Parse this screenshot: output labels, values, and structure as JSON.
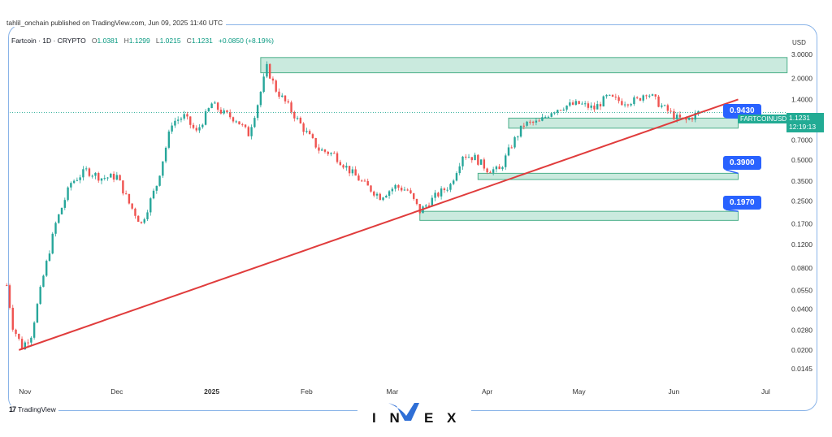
{
  "header": {
    "publish_line": "tahlil_onchain published on TradingView.com, Jun 09, 2025 11:40 UTC",
    "symbol": "Fartcoin · 1D · CRYPTO",
    "o_label": "O",
    "o_value": "1.0381",
    "h_label": "H",
    "h_value": "1.1299",
    "l_label": "L",
    "l_value": "1.0215",
    "c_label": "C",
    "c_value": "1.1231",
    "change": "+0.0850 (+8.19%)"
  },
  "axis": {
    "currency": "USD",
    "y_ticks": [
      "3.0000",
      "2.0000",
      "1.4000",
      "1.0000",
      "0.7000",
      "0.5000",
      "0.3500",
      "0.2500",
      "0.1700",
      "0.1200",
      "0.0800",
      "0.0550",
      "0.0400",
      "0.0280",
      "0.0200",
      "0.0145"
    ],
    "x_ticks": [
      "Nov",
      "Dec",
      "2025",
      "Feb",
      "Mar",
      "Apr",
      "May",
      "Jun",
      "Jul"
    ]
  },
  "price_label": {
    "ticker": "FARTCOINUSD",
    "price": "1.1231",
    "countdown": "12:19:13"
  },
  "callouts": [
    "0.9430",
    "0.3900",
    "0.1970"
  ],
  "footer": {
    "tradingview": "TradingView",
    "brand": "INVEX"
  },
  "colors": {
    "up": "#26a69a",
    "down": "#ef5350",
    "zone": "#9fd8c2",
    "trendline": "#e03c3c",
    "callout": "#2962ff"
  },
  "chart_data": {
    "type": "candlestick",
    "scale": "log",
    "ylim": [
      0.0125,
      3.4
    ],
    "x_range": [
      "2024-10-27",
      "2025-07-07"
    ],
    "price_path": [
      [
        "2024-10-26",
        0.06
      ],
      [
        "2024-10-28",
        0.03
      ],
      [
        "2024-10-31",
        0.021
      ],
      [
        "2024-11-03",
        0.026
      ],
      [
        "2024-11-07",
        0.07
      ],
      [
        "2024-11-11",
        0.17
      ],
      [
        "2024-11-16",
        0.34
      ],
      [
        "2024-11-21",
        0.42
      ],
      [
        "2024-11-26",
        0.37
      ],
      [
        "2024-12-01",
        0.38
      ],
      [
        "2024-12-05",
        0.24
      ],
      [
        "2024-12-09",
        0.17
      ],
      [
        "2024-12-14",
        0.33
      ],
      [
        "2024-12-19",
        0.95
      ],
      [
        "2024-12-23",
        1.05
      ],
      [
        "2024-12-27",
        0.8
      ],
      [
        "2025-01-01",
        1.3
      ],
      [
        "2025-01-05",
        1.1
      ],
      [
        "2025-01-09",
        1.0
      ],
      [
        "2025-01-13",
        0.78
      ],
      [
        "2025-01-16",
        1.3
      ],
      [
        "2025-01-19",
        2.4
      ],
      [
        "2025-01-22",
        1.65
      ],
      [
        "2025-01-26",
        1.25
      ],
      [
        "2025-01-31",
        0.85
      ],
      [
        "2025-02-05",
        0.6
      ],
      [
        "2025-02-10",
        0.55
      ],
      [
        "2025-02-15",
        0.42
      ],
      [
        "2025-02-20",
        0.33
      ],
      [
        "2025-02-25",
        0.27
      ],
      [
        "2025-03-02",
        0.32
      ],
      [
        "2025-03-06",
        0.3
      ],
      [
        "2025-03-10",
        0.21
      ],
      [
        "2025-03-15",
        0.27
      ],
      [
        "2025-03-20",
        0.33
      ],
      [
        "2025-03-24",
        0.55
      ],
      [
        "2025-03-28",
        0.52
      ],
      [
        "2025-04-01",
        0.43
      ],
      [
        "2025-04-05",
        0.42
      ],
      [
        "2025-04-09",
        0.65
      ],
      [
        "2025-04-13",
        0.92
      ],
      [
        "2025-04-18",
        0.95
      ],
      [
        "2025-04-22",
        1.15
      ],
      [
        "2025-04-26",
        1.25
      ],
      [
        "2025-05-01",
        1.3
      ],
      [
        "2025-05-06",
        1.2
      ],
      [
        "2025-05-10",
        1.45
      ],
      [
        "2025-05-15",
        1.35
      ],
      [
        "2025-05-20",
        1.38
      ],
      [
        "2025-05-23",
        1.6
      ],
      [
        "2025-05-28",
        1.25
      ],
      [
        "2025-06-02",
        1.02
      ],
      [
        "2025-06-05",
        0.98
      ],
      [
        "2025-06-09",
        1.12
      ]
    ],
    "zones": [
      {
        "from": "2025-01-17",
        "to": "2025-07-08",
        "low": 2.2,
        "high": 2.85
      },
      {
        "from": "2025-04-08",
        "to": "2025-06-22",
        "low": 0.86,
        "high": 1.02
      },
      {
        "from": "2025-03-29",
        "to": "2025-06-22",
        "low": 0.36,
        "high": 0.4
      },
      {
        "from": "2025-03-10",
        "to": "2025-06-22",
        "low": 0.18,
        "high": 0.21
      }
    ],
    "trendline": [
      [
        "2024-10-30",
        0.02
      ],
      [
        "2025-06-22",
        1.4
      ]
    ],
    "last_price": 1.1231
  }
}
